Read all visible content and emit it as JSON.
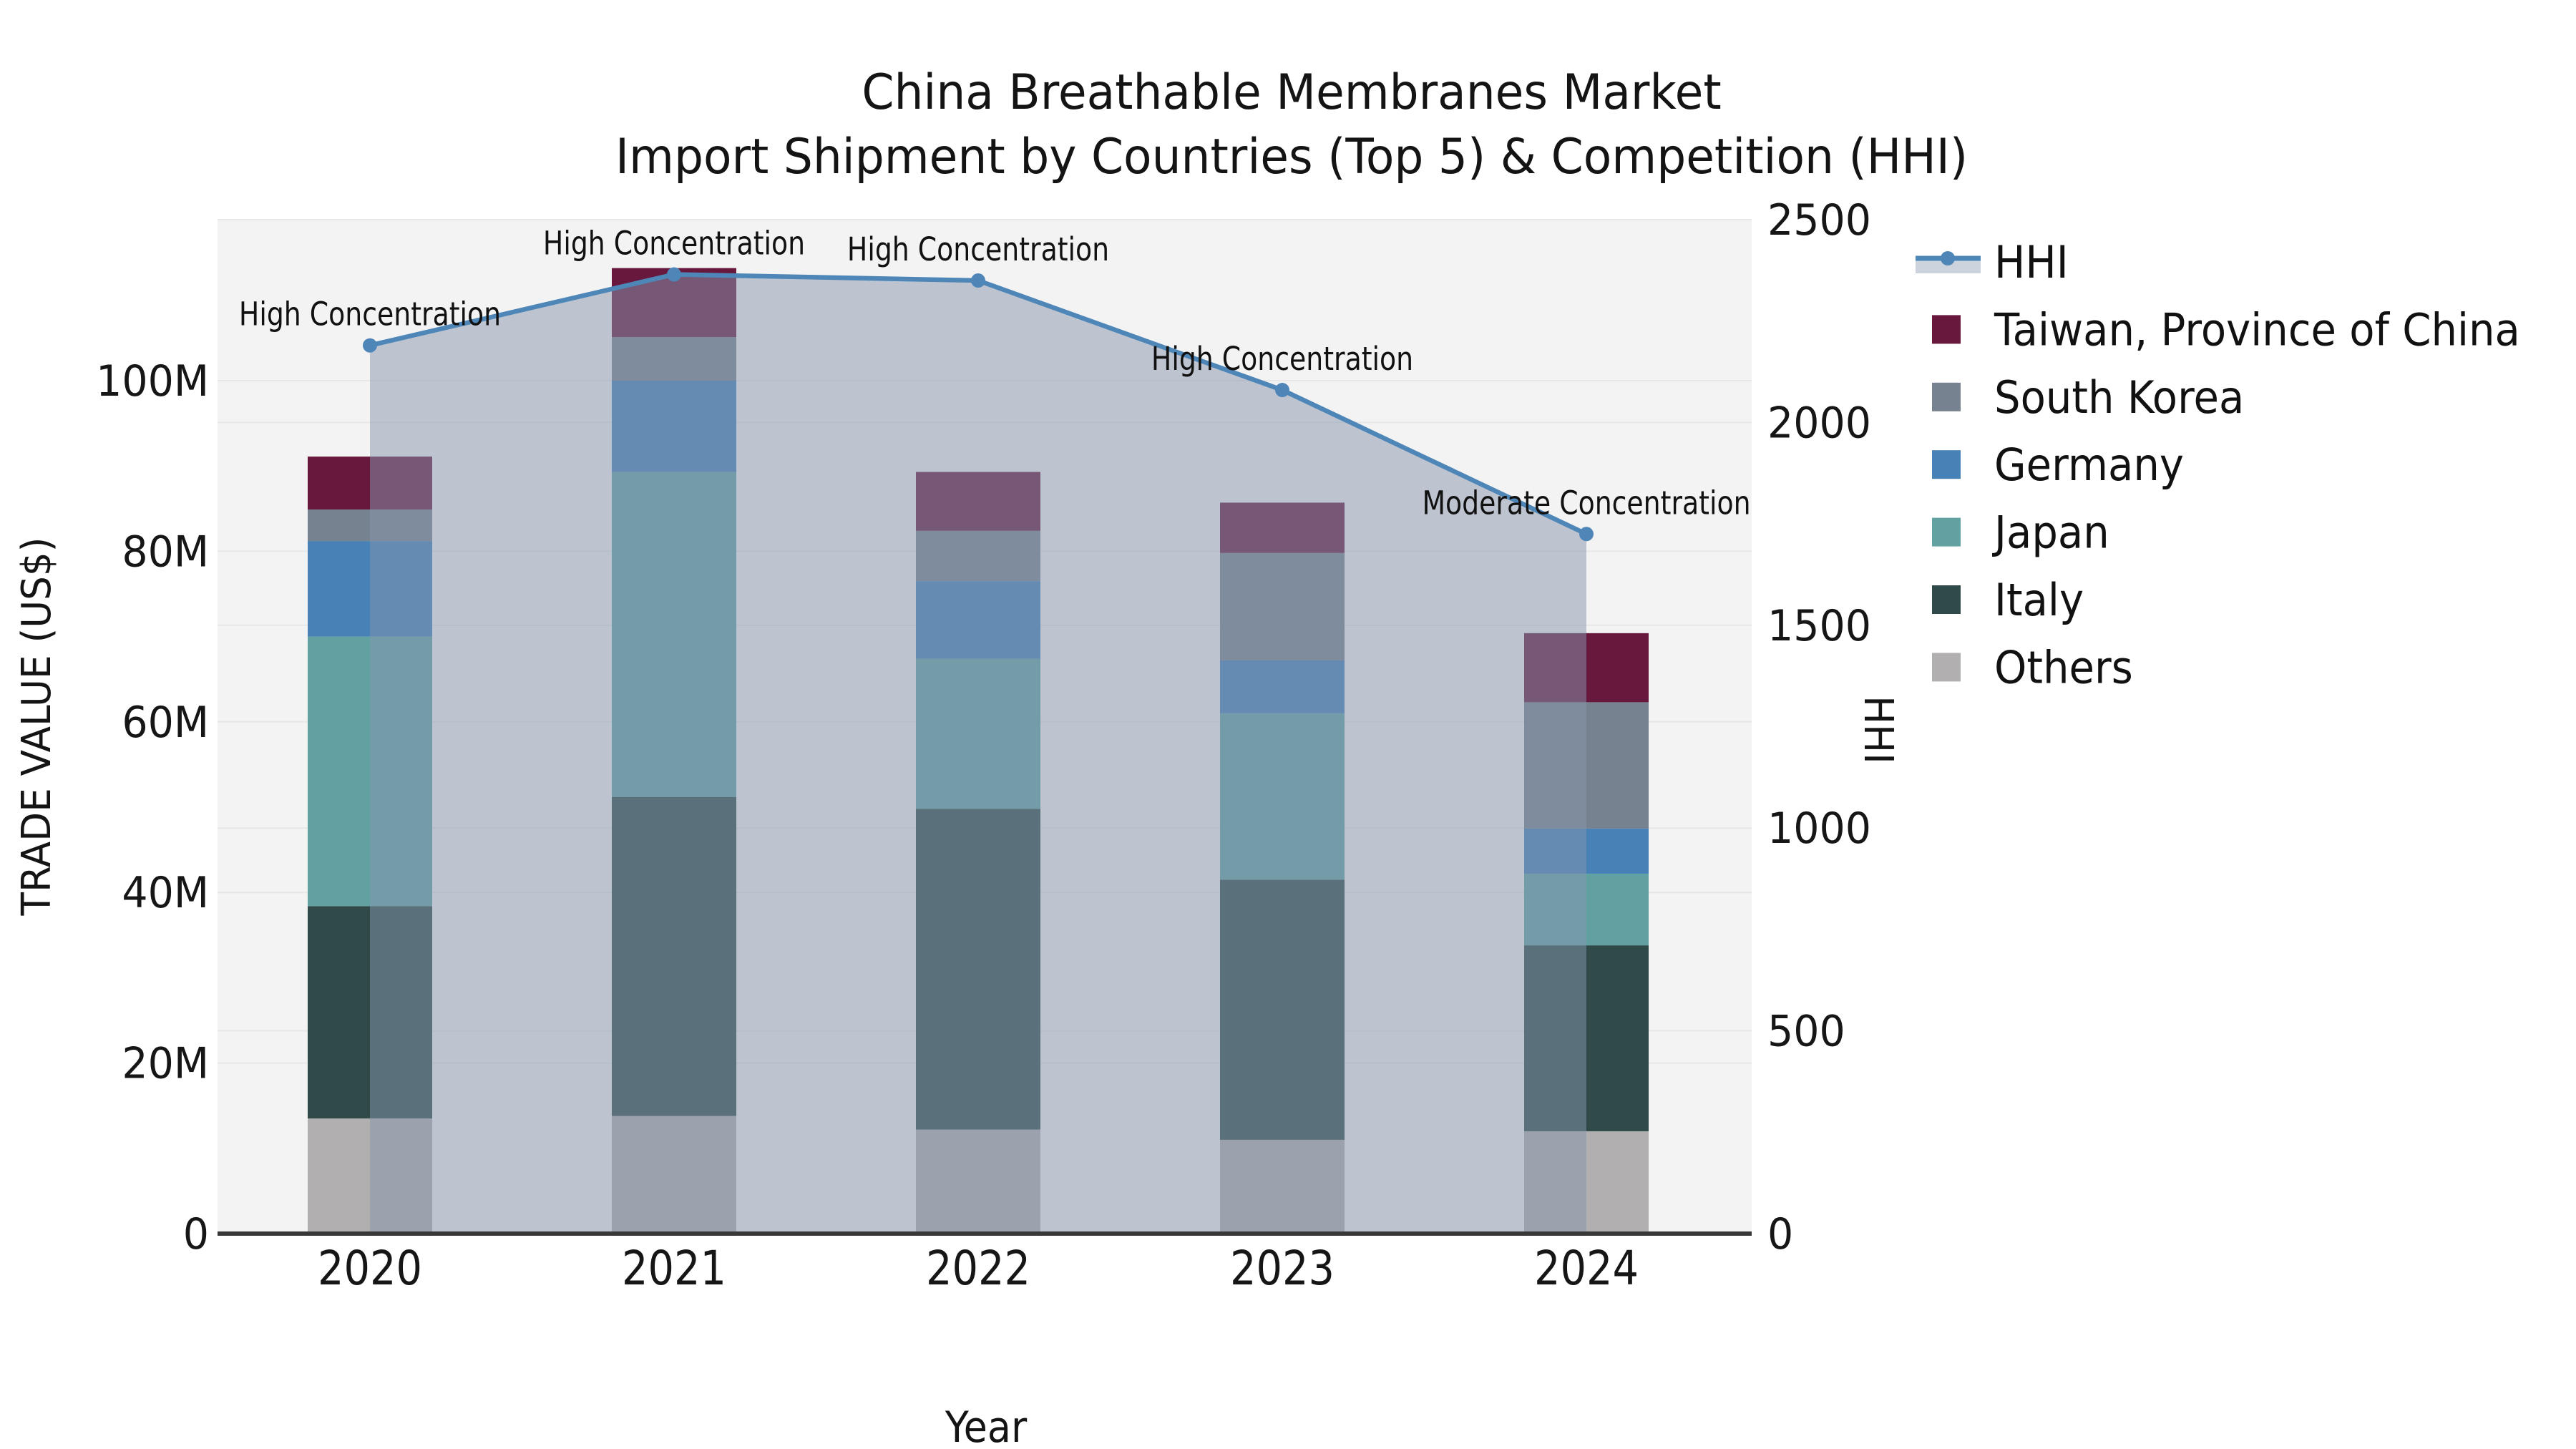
{
  "figure": {
    "title_line1": "China Breathable Membranes Market",
    "title_line2": "Import Shipment by Countries (Top 5) & Competition (HHI)",
    "background": "#ffffff",
    "plot_background": "#f4f3f3",
    "grid_color": "#e7e7e7",
    "axis_line_color": "#383838"
  },
  "axes": {
    "x": {
      "title": "Year",
      "tick_labels": [
        "2020",
        "2021",
        "2022",
        "2023",
        "2024"
      ]
    },
    "left": {
      "title": "TRADE VALUE (US$)",
      "tick_labels": [
        "0",
        "20M",
        "40M",
        "60M",
        "80M",
        "100M"
      ]
    },
    "right": {
      "title": "HHI",
      "tick_labels": [
        "0",
        "500",
        "1000",
        "1500",
        "2000",
        "2500"
      ]
    }
  },
  "legend": {
    "items": [
      {
        "label": "HHI",
        "type": "line",
        "line_color": "#4e86b8",
        "band_color": "#ccd3dd"
      },
      {
        "label": "Taiwan, Province of China",
        "type": "swatch",
        "color": "#67183c"
      },
      {
        "label": "South Korea",
        "type": "swatch",
        "color": "#76828f"
      },
      {
        "label": "Germany",
        "type": "swatch",
        "color": "#4781b6"
      },
      {
        "label": "Japan",
        "type": "swatch",
        "color": "#62a1a2"
      },
      {
        "label": "Italy",
        "type": "swatch",
        "color": "#2f4a48"
      },
      {
        "label": "Others",
        "type": "swatch",
        "color": "#b1afaf"
      }
    ]
  },
  "chart_data": {
    "type": "stacked-bar+line",
    "title": "China Breathable Membranes Market — Import Shipment by Countries (Top 5) & Competition (HHI)",
    "categories": [
      "2020",
      "2021",
      "2022",
      "2023",
      "2024"
    ],
    "bar_value_unit": "US$ millions",
    "stack_order": "bottom-to-top",
    "series": [
      {
        "name": "Others",
        "color": "#b1afaf",
        "values": [
          13.5,
          13.8,
          12.2,
          11.0,
          12.0
        ]
      },
      {
        "name": "Italy",
        "color": "#2f4a48",
        "values": [
          24.9,
          37.4,
          37.6,
          30.5,
          21.8
        ]
      },
      {
        "name": "Japan",
        "color": "#62a1a2",
        "values": [
          31.6,
          38.1,
          17.6,
          19.5,
          8.4
        ]
      },
      {
        "name": "Germany",
        "color": "#4781b6",
        "values": [
          11.2,
          10.7,
          9.1,
          6.2,
          5.3
        ]
      },
      {
        "name": "South Korea",
        "color": "#76828f",
        "values": [
          3.7,
          5.1,
          5.9,
          12.6,
          14.8
        ]
      },
      {
        "name": "Taiwan, Province of China",
        "color": "#67183c",
        "values": [
          6.2,
          8.1,
          6.9,
          5.9,
          8.1
        ]
      }
    ],
    "bar_totals": [
      91.1,
      113.2,
      89.3,
      85.7,
      70.4
    ],
    "line": {
      "name": "HHI",
      "axis": "right",
      "color": "#4e86b8",
      "area_fill": "rgba(133,150,173,0.5)",
      "values": [
        2190,
        2365,
        2350,
        2080,
        1725
      ],
      "annotations": [
        "High Concentration",
        "High Concentration",
        "High Concentration",
        "High Concentration",
        "Moderate Concentration"
      ]
    },
    "xlabel": "Year",
    "ylabel_left": "TRADE VALUE (US$)",
    "ylabel_right": "HHI",
    "ylim_left_millions": [
      0,
      119
    ],
    "ylim_right": [
      0,
      2500
    ],
    "grid": true,
    "legend_position": "right"
  }
}
